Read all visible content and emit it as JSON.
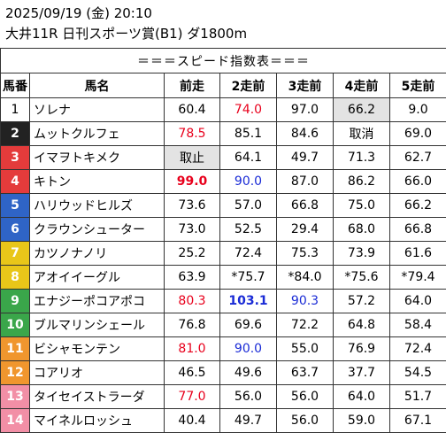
{
  "header": {
    "line1": "2025/09/19 (金) 20:10",
    "line2": "大井11R 日刊スポーツ賞(B1) ダ1800m"
  },
  "table": {
    "banner": "＝＝＝スピード指数表＝＝＝",
    "columns": [
      "馬番",
      "馬名",
      "前走",
      "2走前",
      "3走前",
      "4走前",
      "5走前"
    ],
    "rows": [
      {
        "num": "1",
        "color": "#ffffff",
        "text": "#000000",
        "name": "ソレナ",
        "v": [
          "60.4",
          "74.0",
          "97.0",
          "66.2",
          "9.0"
        ]
      },
      {
        "num": "2",
        "color": "#222222",
        "text": "#ffffff",
        "name": "ムットクルフェ",
        "v": [
          "78.5",
          "85.1",
          "84.6",
          "取消",
          "69.0"
        ]
      },
      {
        "num": "3",
        "color": "#e43b3b",
        "text": "#ffffff",
        "name": "イマヲトキメク",
        "v": [
          "取止",
          "64.1",
          "49.7",
          "71.3",
          "62.7"
        ]
      },
      {
        "num": "4",
        "color": "#e43b3b",
        "text": "#ffffff",
        "name": "キトン",
        "v": [
          "99.0",
          "90.0",
          "87.0",
          "86.2",
          "66.0"
        ]
      },
      {
        "num": "5",
        "color": "#2f64c6",
        "text": "#ffffff",
        "name": "ハリウッドヒルズ",
        "v": [
          "73.6",
          "57.0",
          "66.8",
          "75.0",
          "66.2"
        ]
      },
      {
        "num": "6",
        "color": "#2f64c6",
        "text": "#ffffff",
        "name": "クラウンシューター",
        "v": [
          "73.0",
          "52.5",
          "29.4",
          "68.0",
          "66.8"
        ]
      },
      {
        "num": "7",
        "color": "#e9c619",
        "text": "#ffffff",
        "name": "カツノナノリ",
        "v": [
          "25.2",
          "72.4",
          "75.3",
          "73.9",
          "61.6"
        ]
      },
      {
        "num": "8",
        "color": "#e9c619",
        "text": "#ffffff",
        "name": "アオイイーグル",
        "v": [
          "63.9",
          "*75.7",
          "*84.0",
          "*75.6",
          "*79.4"
        ]
      },
      {
        "num": "9",
        "color": "#3aa64a",
        "text": "#ffffff",
        "name": "エナジーポコアポコ",
        "v": [
          "80.3",
          "103.1",
          "90.3",
          "57.2",
          "64.0"
        ]
      },
      {
        "num": "10",
        "color": "#3aa64a",
        "text": "#ffffff",
        "name": "ブルマリンシェール",
        "v": [
          "76.8",
          "69.6",
          "72.2",
          "64.8",
          "58.4"
        ]
      },
      {
        "num": "11",
        "color": "#f0962e",
        "text": "#ffffff",
        "name": "ビシャモンテン",
        "v": [
          "81.0",
          "90.0",
          "55.0",
          "76.9",
          "72.4"
        ]
      },
      {
        "num": "12",
        "color": "#f0962e",
        "text": "#ffffff",
        "name": "コアリオ",
        "v": [
          "46.5",
          "49.6",
          "63.7",
          "37.7",
          "54.5"
        ]
      },
      {
        "num": "13",
        "color": "#f28fa6",
        "text": "#ffffff",
        "name": "タイセイストラーダ",
        "v": [
          "77.0",
          "56.0",
          "56.0",
          "64.0",
          "51.7"
        ]
      },
      {
        "num": "14",
        "color": "#f28fa6",
        "text": "#ffffff",
        "name": "マイネルロッシュ",
        "v": [
          "40.4",
          "49.7",
          "56.0",
          "59.0",
          "67.1"
        ]
      }
    ],
    "styles": {
      "0-1": "red",
      "1-0": "red",
      "2-0": "grey",
      "0-3": "grey",
      "3-0": "red bold",
      "3-1": "blue",
      "8-0": "red",
      "8-1": "blue bold",
      "8-2": "blue",
      "10-0": "red",
      "10-1": "blue",
      "12-0": "red"
    }
  }
}
